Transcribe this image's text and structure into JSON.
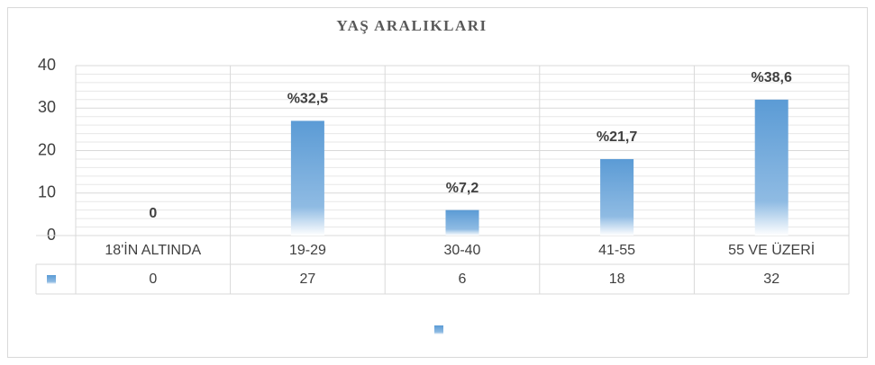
{
  "chart_data": {
    "type": "bar",
    "title": "YAŞ ARALIKLARI",
    "categories": [
      "18'İN ALTINDA",
      "19-29",
      "30-40",
      "41-55",
      "55 VE ÜZERİ"
    ],
    "values": [
      0,
      27,
      6,
      18,
      32
    ],
    "data_labels": [
      "0",
      "%32,5",
      "%7,2",
      "%21,7",
      "%38,6"
    ],
    "color": "#5b9bd5",
    "ylim": [
      0,
      40
    ],
    "yticks": [
      0,
      10,
      20,
      30,
      40
    ],
    "grid": true,
    "data_table": true
  }
}
